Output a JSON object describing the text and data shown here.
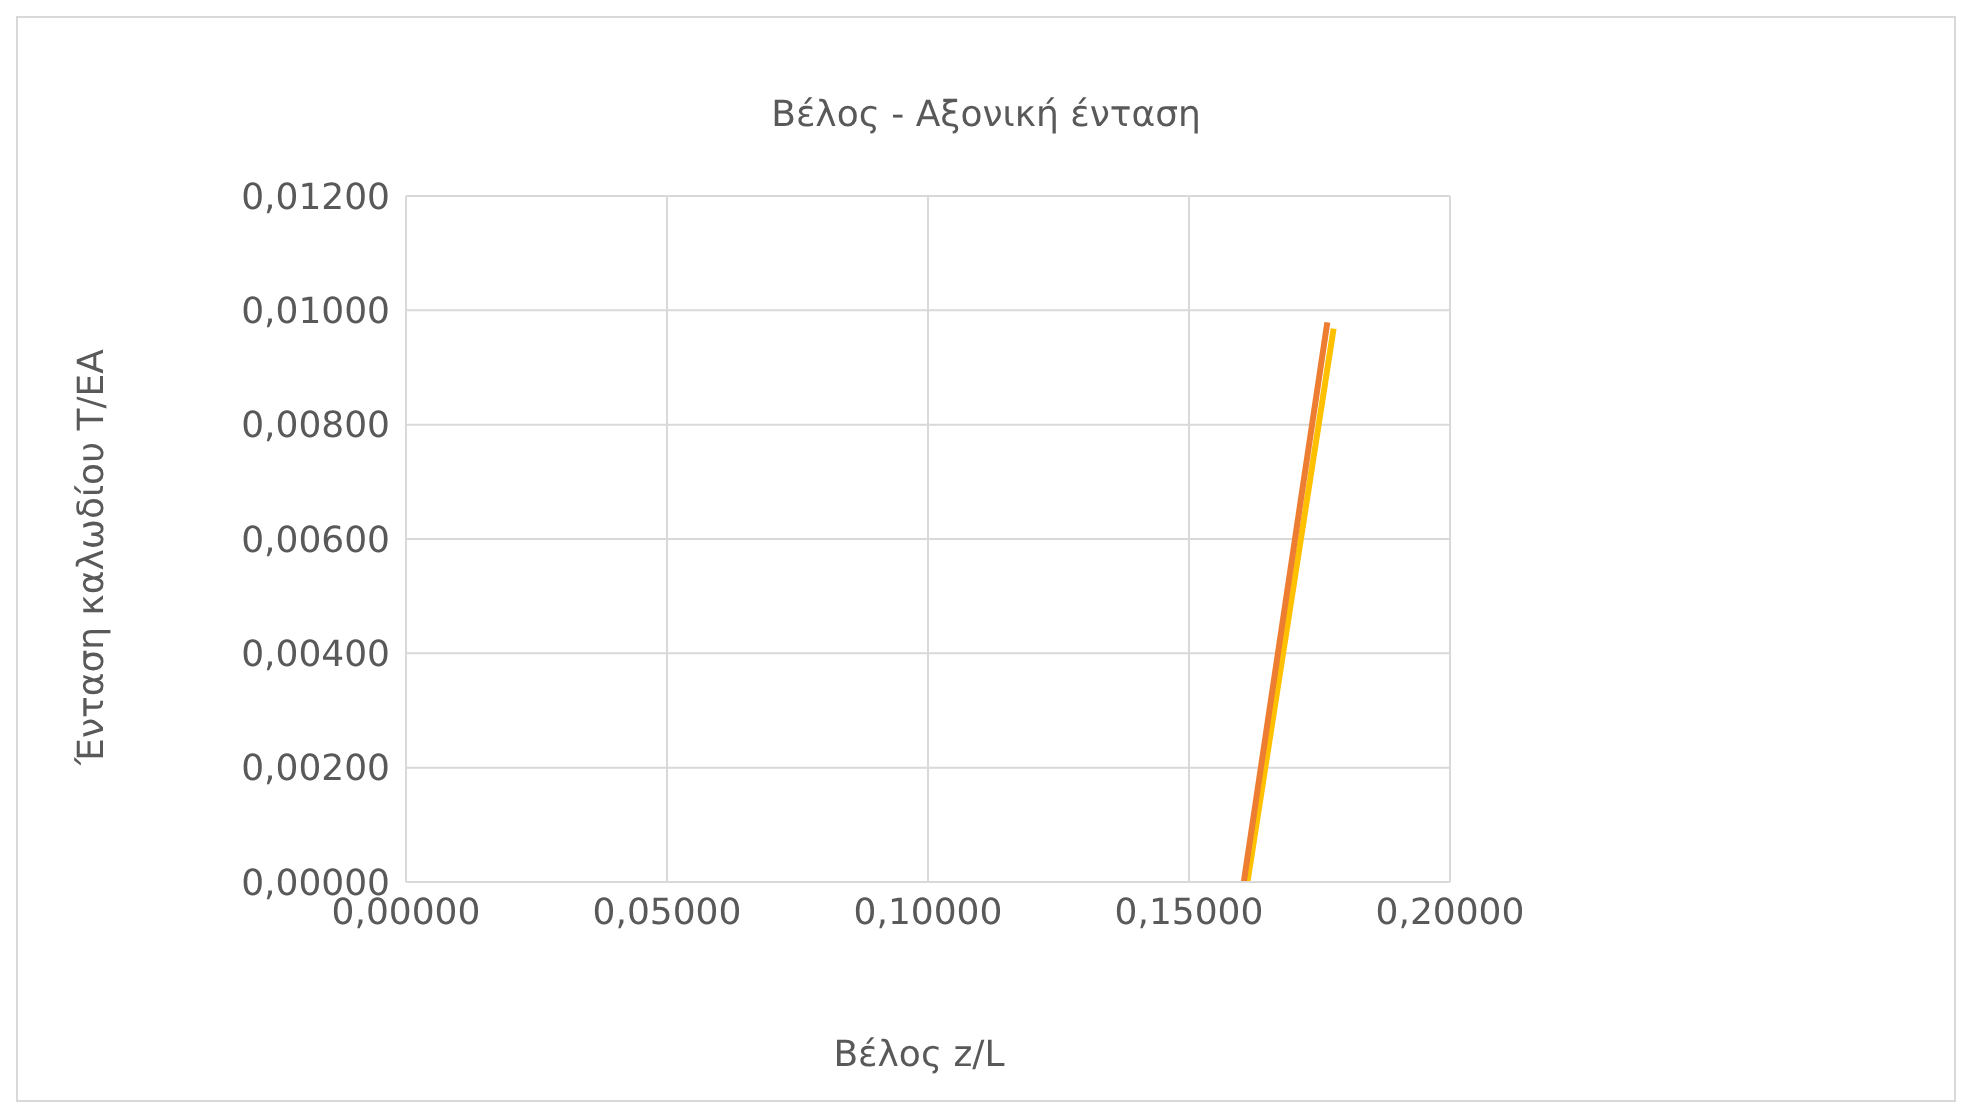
{
  "chart_data": {
    "type": "line",
    "title": "Βέλος - Αξονική ένταση",
    "xlabel": "Βέλος z/L",
    "ylabel": "Ένταση καλωδίου T/EA",
    "series": [
      {
        "color": "#ffc000",
        "x": [
          0.1612,
          0.1777
        ],
        "values": [
          0,
          0.00968
        ]
      },
      {
        "color": "#ed7d31",
        "x": [
          0.1605,
          0.1765
        ],
        "values": [
          0,
          0.00979
        ]
      }
    ],
    "xlim": [
      0,
      0.2
    ],
    "xticks": [
      {
        "value": 0,
        "label": "0,00000"
      },
      {
        "value": 0.05,
        "label": "0,05000"
      },
      {
        "value": 0.1,
        "label": "0,10000"
      },
      {
        "value": 0.15,
        "label": "0,15000"
      },
      {
        "value": 0.2,
        "label": "0,20000"
      }
    ],
    "ylim": [
      0,
      0.012
    ],
    "yticks": [
      {
        "value": 0,
        "label": "0,00000"
      },
      {
        "value": 0.002,
        "label": "0,00200"
      },
      {
        "value": 0.004,
        "label": "0,00400"
      },
      {
        "value": 0.006,
        "label": "0,00600"
      },
      {
        "value": 0.008,
        "label": "0,00800"
      },
      {
        "value": 0.01,
        "label": "0,01000"
      },
      {
        "value": 0.012,
        "label": "0,01200"
      }
    ],
    "grid": true,
    "marker": "none",
    "line_style": "solid"
  }
}
